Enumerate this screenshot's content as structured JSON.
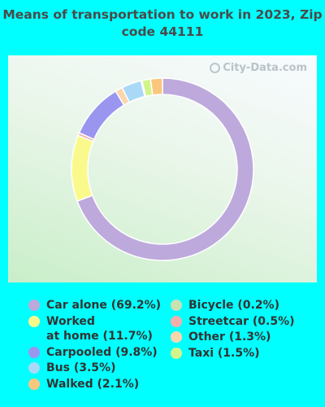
{
  "chart_data": {
    "type": "pie",
    "title": "Means of transportation to work in 2023, Zip code 44111",
    "slices": [
      {
        "name": "Car alone",
        "value": 69.2,
        "label": "Car alone (69.2%)",
        "color": "#bda9dc"
      },
      {
        "name": "Worked at home",
        "value": 11.7,
        "label": "Worked\nat home (11.7%)",
        "color": "#fafa8c"
      },
      {
        "name": "Streetcar",
        "value": 0.5,
        "label": "Streetcar (0.5%)",
        "color": "#f3aeac"
      },
      {
        "name": "Carpooled",
        "value": 9.8,
        "label": "Carpooled (9.8%)",
        "color": "#9a96ef"
      },
      {
        "name": "Other",
        "value": 1.3,
        "label": "Other (1.3%)",
        "color": "#fbd6ad"
      },
      {
        "name": "Bus",
        "value": 3.5,
        "label": "Bus (3.5%)",
        "color": "#a9d9f7"
      },
      {
        "name": "Bicycle",
        "value": 0.2,
        "label": "Bicycle (0.2%)",
        "color": "#c9e1b3"
      },
      {
        "name": "Taxi",
        "value": 1.5,
        "label": "Taxi (1.5%)",
        "color": "#d3f48a"
      },
      {
        "name": "Walked",
        "value": 2.1,
        "label": "Walked (2.1%)",
        "color": "#fbc77d"
      }
    ],
    "legend_left": [
      "Car alone",
      "Worked at home",
      "Carpooled",
      "Bus",
      "Walked"
    ],
    "legend_right": [
      "Bicycle",
      "Streetcar",
      "Other",
      "Taxi"
    ]
  },
  "title": "Means of transportation to work in 2023, Zip code 44111",
  "watermark": "City-Data.com"
}
